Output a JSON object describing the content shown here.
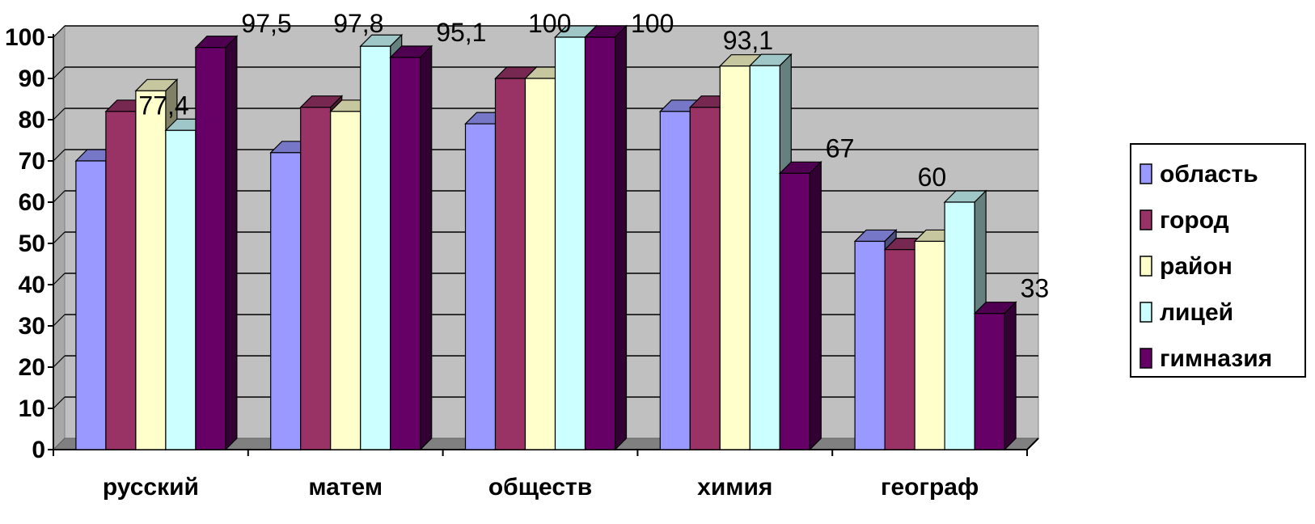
{
  "chart_data": {
    "type": "bar",
    "categories": [
      "русский",
      "матем",
      "обществ",
      "химия",
      "географ"
    ],
    "series": [
      {
        "name": "область",
        "color": "#9999ff",
        "values": [
          70,
          72,
          79,
          82,
          50.5
        ]
      },
      {
        "name": "город",
        "color": "#993366",
        "values": [
          82,
          83,
          90,
          83,
          48.5
        ]
      },
      {
        "name": "район",
        "color": "#ffffcc",
        "values": [
          87,
          82,
          90,
          93,
          50.5
        ]
      },
      {
        "name": "лицей",
        "color": "#ccffff",
        "values": [
          77.4,
          97.8,
          100,
          93.1,
          60
        ]
      },
      {
        "name": "гимназия",
        "color": "#660066",
        "values": [
          97.5,
          95.1,
          100,
          67,
          33
        ]
      }
    ],
    "data_labels": [
      {
        "text": "77,4",
        "category": "русский",
        "series": "лицей"
      },
      {
        "text": "97,5",
        "category": "русский",
        "series": "гимназия"
      },
      {
        "text": "97,8",
        "category": "матем",
        "series": "лицей"
      },
      {
        "text": "95,1",
        "category": "матем",
        "series": "гимназия"
      },
      {
        "text": "100",
        "category": "обществ",
        "series": "лицей"
      },
      {
        "text": "100",
        "category": "обществ",
        "series": "гимназия"
      },
      {
        "text": "93,1",
        "category": "химия",
        "series": "лицей"
      },
      {
        "text": "67",
        "category": "химия",
        "series": "гимназия"
      },
      {
        "text": "60",
        "category": "географ",
        "series": "лицей"
      },
      {
        "text": "33",
        "category": "географ",
        "series": "гимназия"
      }
    ],
    "yticks": [
      "0",
      "10",
      "20",
      "30",
      "40",
      "50",
      "60",
      "70",
      "80",
      "90",
      "100"
    ],
    "ylim": [
      0,
      100
    ],
    "grid": true,
    "legend_position": "right",
    "style": "3d-clustered-column",
    "plot_background": "#c0c0c0",
    "floor_color": "#808080"
  }
}
